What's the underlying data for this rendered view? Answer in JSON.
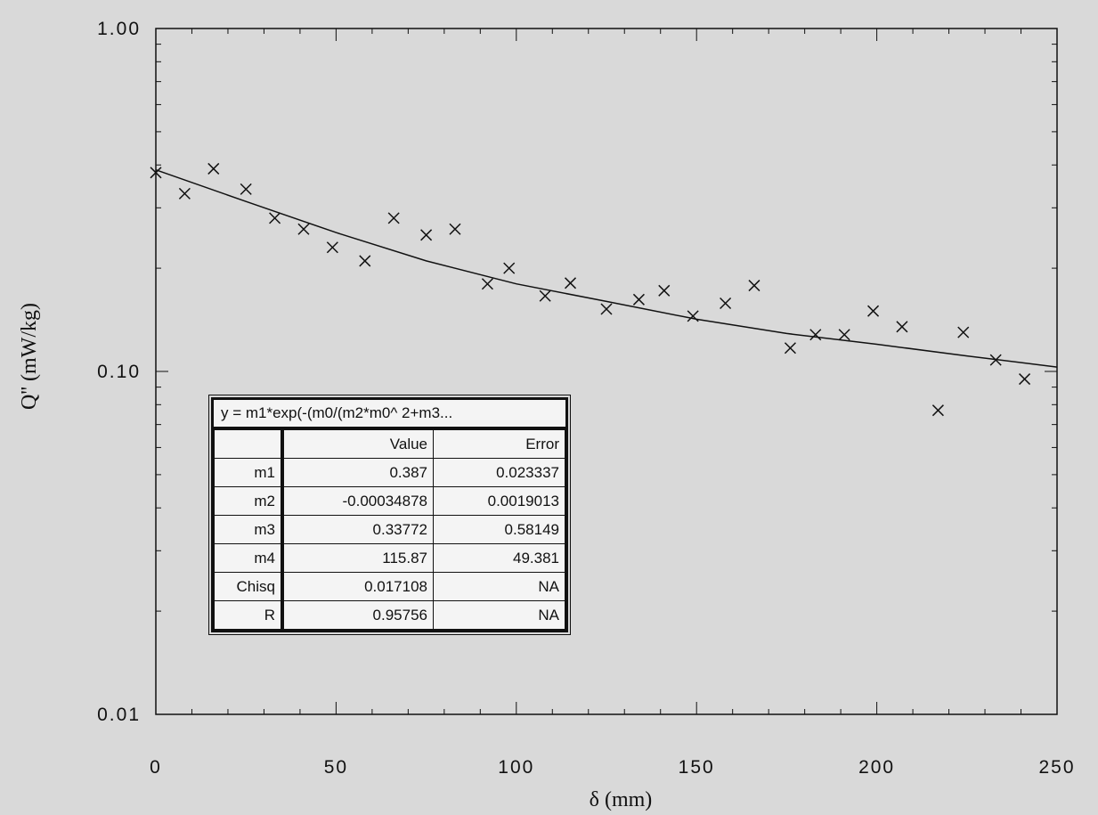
{
  "chart_data": {
    "type": "scatter",
    "xlabel": "δ (mm)",
    "ylabel": "Q'' (mW/kg)",
    "xlim": [
      0,
      250
    ],
    "ylim": [
      0.01,
      1.0
    ],
    "y_scale": "log",
    "x_ticks": [
      "0",
      "50",
      "100",
      "150",
      "200",
      "250"
    ],
    "y_ticks": [
      "0.01",
      "0.10",
      "1.00"
    ],
    "grid": false,
    "marker": "x",
    "points": [
      {
        "x": 0,
        "y": 0.38
      },
      {
        "x": 8,
        "y": 0.33
      },
      {
        "x": 16,
        "y": 0.39
      },
      {
        "x": 25,
        "y": 0.34
      },
      {
        "x": 33,
        "y": 0.28
      },
      {
        "x": 41,
        "y": 0.26
      },
      {
        "x": 49,
        "y": 0.23
      },
      {
        "x": 58,
        "y": 0.21
      },
      {
        "x": 66,
        "y": 0.28
      },
      {
        "x": 75,
        "y": 0.25
      },
      {
        "x": 83,
        "y": 0.26
      },
      {
        "x": 92,
        "y": 0.18
      },
      {
        "x": 98,
        "y": 0.2
      },
      {
        "x": 108,
        "y": 0.166
      },
      {
        "x": 115,
        "y": 0.181
      },
      {
        "x": 125,
        "y": 0.152
      },
      {
        "x": 134,
        "y": 0.162
      },
      {
        "x": 141,
        "y": 0.172
      },
      {
        "x": 149,
        "y": 0.145
      },
      {
        "x": 158,
        "y": 0.158
      },
      {
        "x": 166,
        "y": 0.178
      },
      {
        "x": 176,
        "y": 0.117
      },
      {
        "x": 183,
        "y": 0.128
      },
      {
        "x": 191,
        "y": 0.128
      },
      {
        "x": 199,
        "y": 0.15
      },
      {
        "x": 207,
        "y": 0.135
      },
      {
        "x": 217,
        "y": 0.077
      },
      {
        "x": 224,
        "y": 0.13
      },
      {
        "x": 233,
        "y": 0.108
      },
      {
        "x": 241,
        "y": 0.095
      }
    ],
    "fit_line": [
      {
        "x": 0,
        "y": 0.387
      },
      {
        "x": 25,
        "y": 0.313
      },
      {
        "x": 50,
        "y": 0.254
      },
      {
        "x": 75,
        "y": 0.21
      },
      {
        "x": 100,
        "y": 0.18
      },
      {
        "x": 125,
        "y": 0.16
      },
      {
        "x": 150,
        "y": 0.142
      },
      {
        "x": 175,
        "y": 0.129
      },
      {
        "x": 200,
        "y": 0.12
      },
      {
        "x": 225,
        "y": 0.111
      },
      {
        "x": 250,
        "y": 0.103
      }
    ],
    "fit_table": {
      "equation": "y  =  m1*exp(-(m0/(m2*m0^  2+m3...",
      "headers": [
        "",
        "Value",
        "Error"
      ],
      "rows": [
        [
          "m1",
          "0.387",
          "0.023337"
        ],
        [
          "m2",
          "-0.00034878",
          "0.0019013"
        ],
        [
          "m3",
          "0.33772",
          "0.58149"
        ],
        [
          "m4",
          "115.87",
          "49.381"
        ],
        [
          "Chisq",
          "0.017108",
          "NA"
        ],
        [
          "R",
          "0.95756",
          "NA"
        ]
      ]
    }
  }
}
